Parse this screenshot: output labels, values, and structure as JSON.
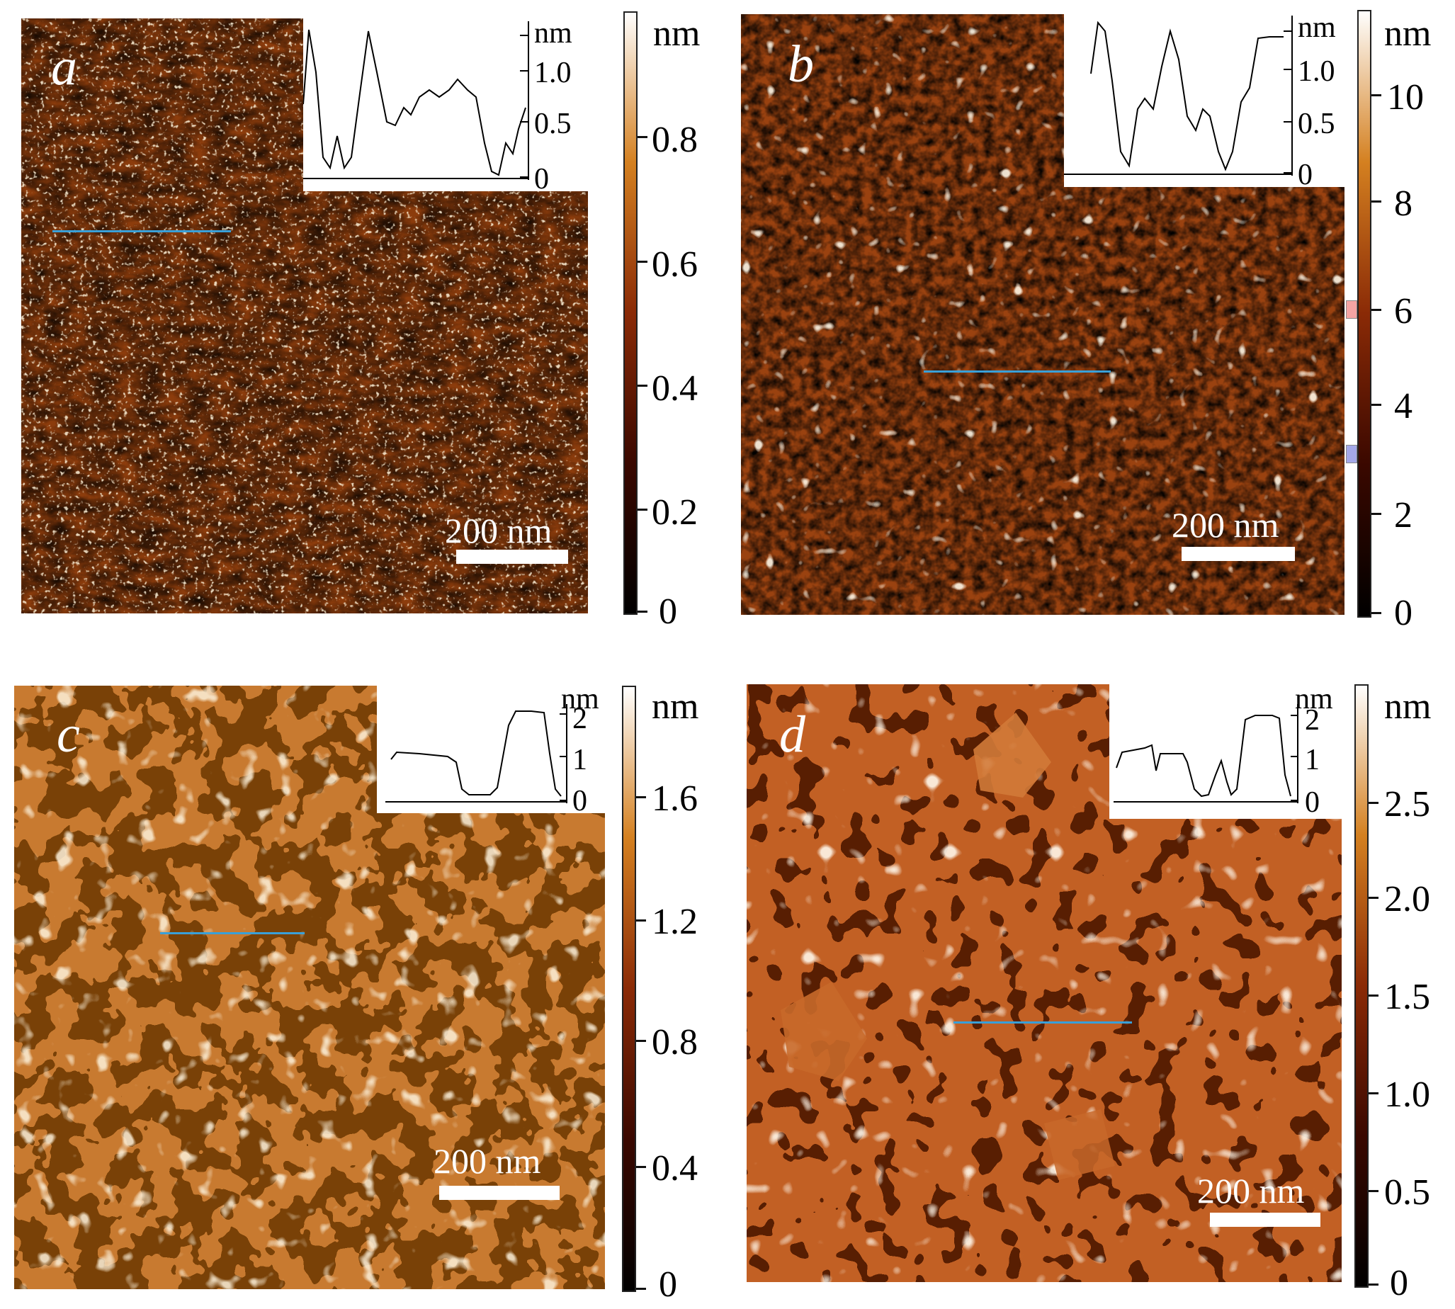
{
  "panels": [
    {
      "id": "a",
      "label": "a",
      "scale_label": "200 nm",
      "inset": {
        "unit": "nm",
        "ticks": [
          "1.0",
          "0.5",
          "0"
        ]
      },
      "colorbar": {
        "unit": "nm",
        "ticks": [
          "0.8",
          "0.6",
          "0.4",
          "0.2",
          "0"
        ]
      }
    },
    {
      "id": "b",
      "label": "b",
      "scale_label": "200 nm",
      "inset": {
        "unit": "nm",
        "ticks": [
          "1.0",
          "0.5",
          "0"
        ]
      },
      "colorbar": {
        "unit": "nm",
        "ticks": [
          "10",
          "8",
          "6",
          "4",
          "2",
          "0"
        ]
      }
    },
    {
      "id": "c",
      "label": "c",
      "scale_label": "200 nm",
      "inset": {
        "unit": "nm",
        "ticks": [
          "2",
          "1",
          "0"
        ]
      },
      "colorbar": {
        "unit": "nm",
        "ticks": [
          "1.6",
          "1.2",
          "0.8",
          "0.4",
          "0"
        ]
      }
    },
    {
      "id": "d",
      "label": "d",
      "scale_label": "200 nm",
      "inset": {
        "unit": "nm",
        "ticks": [
          "2",
          "1",
          "0"
        ]
      },
      "colorbar": {
        "unit": "nm",
        "ticks": [
          "2.5",
          "2.0",
          "1.5",
          "1.0",
          "0.5",
          "0"
        ]
      }
    }
  ],
  "colors": {
    "afm_dark": "#1a0500",
    "afm_mid": "#8a3a08",
    "afm_light": "#e0a048",
    "profile_line": "#3aa0d8"
  }
}
